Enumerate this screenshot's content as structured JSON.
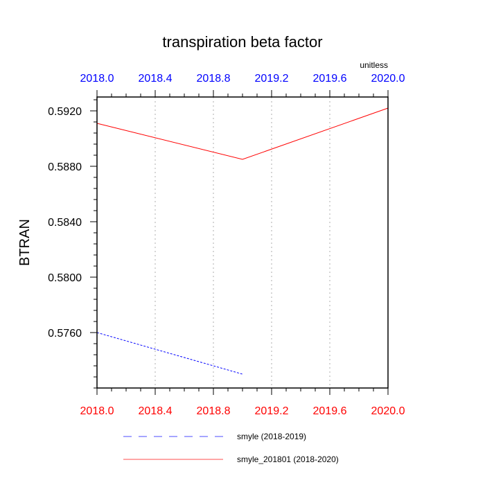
{
  "chart_data": {
    "type": "line",
    "title": "transpiration beta factor",
    "units": "unitless",
    "ylabel": "BTRAN",
    "xlabel": "",
    "xlim": [
      2018.0,
      2020.0
    ],
    "ylim": [
      0.572,
      0.593
    ],
    "x_ticks": [
      2018.0,
      2018.4,
      2018.8,
      2019.2,
      2019.6,
      2020.0
    ],
    "x_tick_labels": [
      "2018.0",
      "2018.4",
      "2018.8",
      "2019.2",
      "2019.6",
      "2020.0"
    ],
    "y_ticks": [
      0.576,
      0.58,
      0.584,
      0.588,
      0.592
    ],
    "y_tick_labels": [
      "0.5760",
      "0.5800",
      "0.5840",
      "0.5880",
      "0.5920"
    ],
    "grid": "vertical dotted",
    "legend_position": "bottom",
    "colors": {
      "top_axis_labels": "#0000ff",
      "bottom_axis_labels": "#ff0000"
    },
    "series": [
      {
        "name": "smyle (2018-2019)",
        "color": "#0000ff",
        "dash": "dashed",
        "x": [
          2018.0,
          2019.0
        ],
        "y": [
          0.576,
          0.573
        ]
      },
      {
        "name": "smyle_201801 (2018-2020)",
        "color": "#ff0000",
        "dash": "solid",
        "x": [
          2018.0,
          2019.0,
          2020.0
        ],
        "y": [
          0.5911,
          0.5885,
          0.5922
        ]
      }
    ]
  }
}
